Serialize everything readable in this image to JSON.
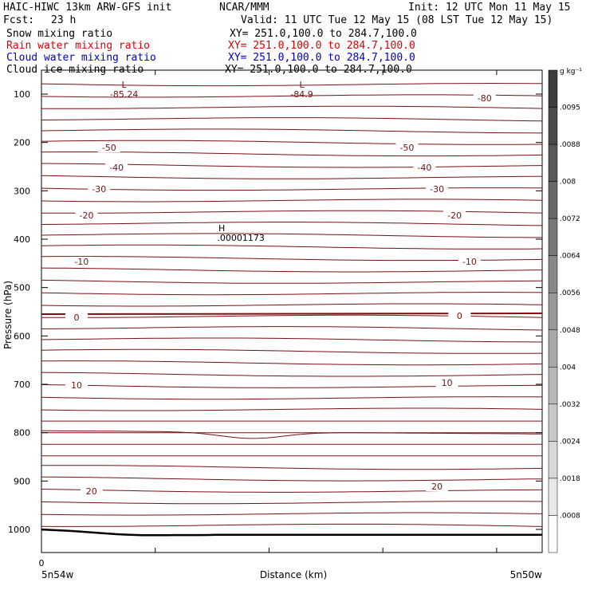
{
  "header": {
    "title": "HAIC-HIWC 13km ARW-GFS init",
    "org": "NCAR/MMM",
    "init": "Init: 12 UTC Mon 11 May 15",
    "fcst_label": "Fcst:",
    "fcst_value": "23 h",
    "valid": "Valid: 11 UTC Tue 12 May 15 (08 LST Tue 12 May 15)"
  },
  "fields": [
    {
      "name": "Snow mixing ratio",
      "xy": "XY= 251.0,100.0 to 284.7,100.0",
      "color": "#000000"
    },
    {
      "name": "Rain water mixing ratio",
      "xy": "XY= 251.0,100.0 to 284.7,100.0",
      "color": "#e00000"
    },
    {
      "name": "Cloud water mixing ratio",
      "xy": "XY= 251.0,100.0 to 284.7,100.0",
      "color": "#0000cc"
    },
    {
      "name": "Cloud ice mixing ratio",
      "xy": "XY= 251.0,100.0 to 284.7,100.0",
      "color": "#000000"
    }
  ],
  "chart_data": {
    "type": "contour",
    "ylabel": "Pressure (hPa)",
    "xlabel": "Distance (km)",
    "x_start_label": "5n54w",
    "x_end_label": "5n50w",
    "x_zero_label": "0",
    "y_ticks": [
      100,
      200,
      300,
      400,
      500,
      600,
      700,
      800,
      900,
      1000
    ],
    "ylim": [
      50,
      1050
    ],
    "contour_color": "#7a1010",
    "isotherms": [
      {
        "value": -80,
        "label": "-80"
      },
      {
        "value": -50,
        "label": "-50"
      },
      {
        "value": -40,
        "label": "-40"
      },
      {
        "value": -30,
        "label": "-30"
      },
      {
        "value": -20,
        "label": "-20"
      },
      {
        "value": -10,
        "label": "-10"
      },
      {
        "value": 0,
        "label": "0"
      },
      {
        "value": 10,
        "label": "10"
      },
      {
        "value": 20,
        "label": "20"
      }
    ],
    "extrema": [
      {
        "type": "L",
        "value": "-85.24",
        "color": "#7a1010"
      },
      {
        "type": "L",
        "value": "-84.9",
        "color": "#7a1010"
      },
      {
        "type": "H",
        "value": ".00001173",
        "color": "#000000"
      }
    ],
    "colorbar": {
      "unit": "g kg⁻¹",
      "labels": [
        ".0095",
        ".0088",
        ".008",
        ".0072",
        ".0064",
        ".0056",
        ".0048",
        ".004",
        ".0032",
        ".0024",
        ".0018",
        ".0008"
      ],
      "shades": [
        "#3c3c3c",
        "#4a4a4a",
        "#585858",
        "#686868",
        "#787878",
        "#888888",
        "#989898",
        "#a8a8a8",
        "#b8b8b8",
        "#c8c8c8",
        "#d8d8d8",
        "#e8e8e8",
        "#ffffff"
      ]
    }
  }
}
